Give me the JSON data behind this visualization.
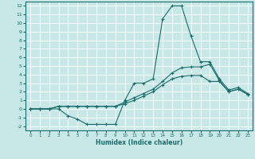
{
  "title": "",
  "xlabel": "Humidex (Indice chaleur)",
  "ylabel": "",
  "background_color": "#c8e8e8",
  "grid_color": "#ffffff",
  "line_color": "#1a6b6b",
  "xlim": [
    -0.5,
    23.5
  ],
  "ylim": [
    -2.5,
    12.5
  ],
  "xticks": [
    0,
    1,
    2,
    3,
    4,
    5,
    6,
    7,
    8,
    9,
    10,
    11,
    12,
    13,
    14,
    15,
    16,
    17,
    18,
    19,
    20,
    21,
    22,
    23
  ],
  "yticks": [
    -2,
    -1,
    0,
    1,
    2,
    3,
    4,
    5,
    6,
    7,
    8,
    9,
    10,
    11,
    12
  ],
  "curve1_x": [
    0,
    1,
    2,
    3,
    4,
    5,
    6,
    7,
    8,
    9,
    10,
    11,
    12,
    13,
    14,
    15,
    16,
    17,
    18,
    19,
    20,
    21,
    22,
    23
  ],
  "curve1_y": [
    0,
    0,
    0,
    0,
    -0.8,
    -1.2,
    -1.8,
    -1.8,
    -1.8,
    -1.8,
    1.0,
    3.0,
    3.0,
    3.5,
    10.5,
    12.0,
    12.0,
    8.5,
    5.5,
    5.5,
    3.5,
    2.2,
    2.5,
    1.8
  ],
  "curve2_x": [
    0,
    1,
    2,
    3,
    4,
    5,
    6,
    7,
    8,
    9,
    10,
    11,
    12,
    13,
    14,
    15,
    16,
    17,
    18,
    19,
    20,
    21,
    22,
    23
  ],
  "curve2_y": [
    0,
    0,
    0,
    0.3,
    0.3,
    0.3,
    0.3,
    0.3,
    0.3,
    0.3,
    0.8,
    1.3,
    1.8,
    2.3,
    3.2,
    4.2,
    4.8,
    4.9,
    4.9,
    5.2,
    3.3,
    2.0,
    2.3,
    1.7
  ],
  "curve3_x": [
    0,
    1,
    2,
    3,
    4,
    5,
    6,
    7,
    8,
    9,
    10,
    11,
    12,
    13,
    14,
    15,
    16,
    17,
    18,
    19,
    20,
    21,
    22,
    23
  ],
  "curve3_y": [
    0,
    0,
    0,
    0.3,
    0.3,
    0.3,
    0.3,
    0.3,
    0.3,
    0.3,
    0.6,
    1.0,
    1.5,
    2.0,
    2.8,
    3.5,
    3.8,
    3.9,
    3.9,
    3.2,
    3.2,
    2.0,
    2.3,
    1.7
  ]
}
